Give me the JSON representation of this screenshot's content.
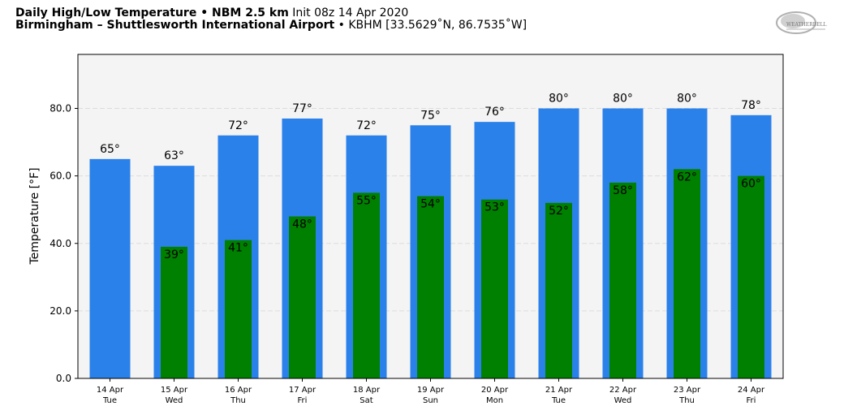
{
  "header": {
    "line1_bold": "Daily High/Low Temperature • NBM 2.5 km",
    "line1_init": "Init 08z 14 Apr 2020",
    "line2_bold": "Birmingham – Shuttlesworth International Airport",
    "line2_rest": "• KBHM [33.5629˚N, 86.7535˚W]",
    "logo_text": "WEATHERBELL"
  },
  "chart_data": {
    "type": "bar",
    "ylabel": "Temperature [°F]",
    "ylim": [
      0,
      96
    ],
    "yticks": [
      "0.0",
      "20.0",
      "40.0",
      "60.0",
      "80.0"
    ],
    "ytick_values": [
      0,
      20,
      40,
      60,
      80
    ],
    "grid": true,
    "categories": [
      {
        "date": "14 Apr",
        "day": "Tue"
      },
      {
        "date": "15 Apr",
        "day": "Wed"
      },
      {
        "date": "16 Apr",
        "day": "Thu"
      },
      {
        "date": "17 Apr",
        "day": "Fri"
      },
      {
        "date": "18 Apr",
        "day": "Sat"
      },
      {
        "date": "19 Apr",
        "day": "Sun"
      },
      {
        "date": "20 Apr",
        "day": "Mon"
      },
      {
        "date": "21 Apr",
        "day": "Tue"
      },
      {
        "date": "22 Apr",
        "day": "Wed"
      },
      {
        "date": "23 Apr",
        "day": "Thu"
      },
      {
        "date": "24 Apr",
        "day": "Fri"
      }
    ],
    "series": [
      {
        "key": "high",
        "color": "#2b81ea",
        "values": [
          65,
          63,
          72,
          77,
          72,
          75,
          76,
          80,
          80,
          80,
          78
        ],
        "labels": [
          "65°",
          "63°",
          "72°",
          "77°",
          "72°",
          "75°",
          "76°",
          "80°",
          "80°",
          "80°",
          "78°"
        ]
      },
      {
        "key": "low",
        "color": "#008000",
        "values": [
          null,
          39,
          41,
          48,
          55,
          54,
          53,
          52,
          58,
          62,
          60
        ],
        "labels": [
          "",
          "39°",
          "41°",
          "48°",
          "55°",
          "54°",
          "53°",
          "52°",
          "58°",
          "62°",
          "60°"
        ]
      }
    ],
    "plot_background": "#f4f4f4"
  }
}
